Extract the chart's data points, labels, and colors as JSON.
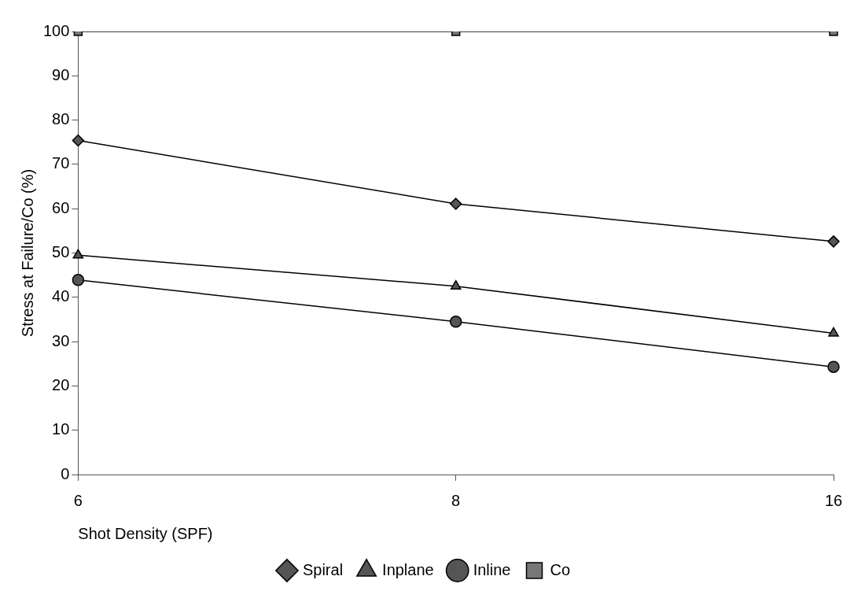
{
  "chart_data": {
    "type": "line",
    "xlabel": "Shot Density (SPF)",
    "ylabel": "Stress at Failure/Co (%)",
    "categories": [
      "6",
      "8",
      "16"
    ],
    "series": [
      {
        "name": "Spiral",
        "color": "#555555",
        "marker": "diamond",
        "values": [
          75.4,
          61.1,
          52.6
        ]
      },
      {
        "name": "Inplane",
        "color": "#555555",
        "marker": "triangle",
        "values": [
          49.5,
          42.5,
          31.9
        ]
      },
      {
        "name": "Inline",
        "color": "#555555",
        "marker": "circle",
        "values": [
          43.9,
          34.5,
          24.3
        ]
      },
      {
        "name": "Co",
        "color": "#777777",
        "marker": "square",
        "values": [
          100,
          100,
          100
        ]
      }
    ],
    "ylim": [
      0,
      100
    ],
    "yticks": [
      0,
      10,
      20,
      30,
      40,
      50,
      60,
      70,
      80,
      90,
      100
    ],
    "grid": false,
    "legend": "bottom",
    "line_style": "solid"
  }
}
